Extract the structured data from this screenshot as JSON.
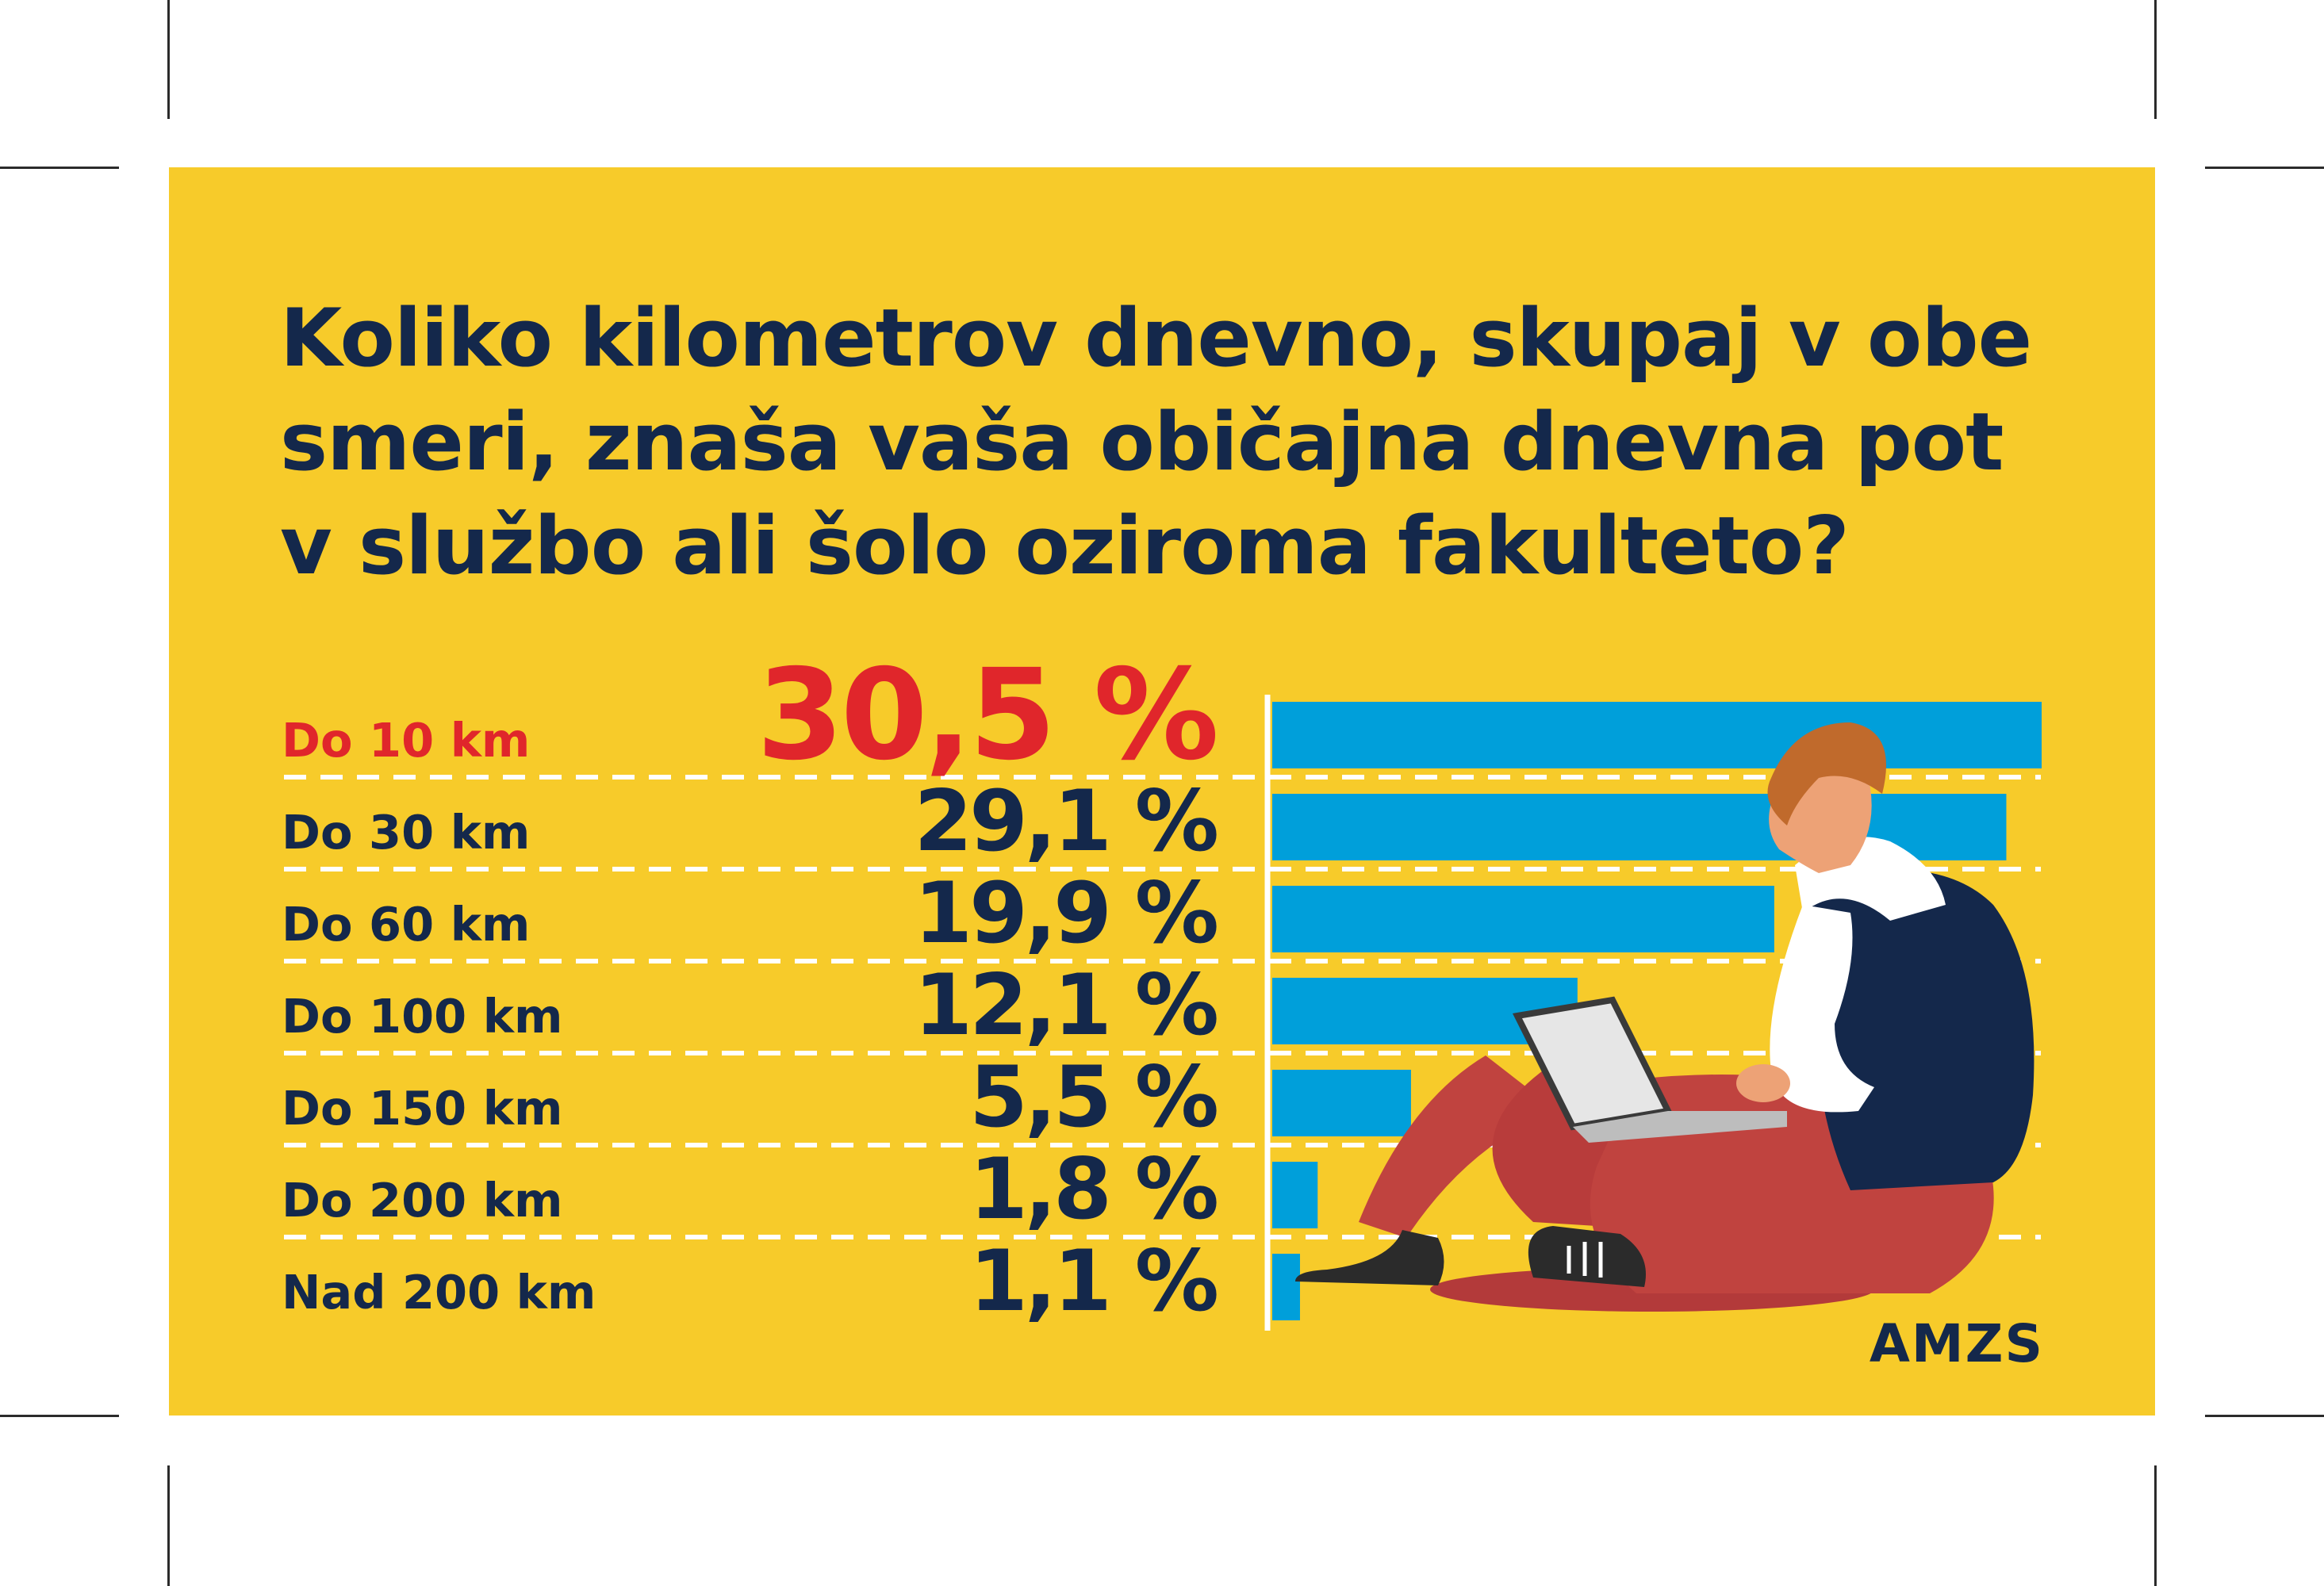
{
  "title": "Koliko kilometrov dnevno, skupaj v obe smeri, znaša vaša običajna dnevna pot v službo ali šolo oziroma fakulteto?",
  "brand": "AMZS",
  "colors": {
    "background": "#f7cb2a",
    "text": "#14284b",
    "highlight": "#e0262b",
    "bar": "#009fda",
    "divider": "#ffffff"
  },
  "illustration": {
    "description_icon": "person-with-laptop-illustration",
    "icon": "person-with-laptop"
  },
  "chart_data": {
    "type": "bar",
    "orientation": "horizontal",
    "categories": [
      "Do 10 km",
      "Do 30 km",
      "Do 60 km",
      "Do 100 km",
      "Do 150 km",
      "Do 200 km",
      "Nad 200 km"
    ],
    "values": [
      30.5,
      29.1,
      19.9,
      12.1,
      5.5,
      1.8,
      1.1
    ],
    "value_labels": [
      "30,5 %",
      "29,1 %",
      "19,9 %",
      "12,1 %",
      "5,5 %",
      "1,8 %",
      "1,1 %"
    ],
    "highlight_index": 0,
    "xlim": [
      0,
      30.5
    ],
    "grid": false,
    "legend": "none"
  }
}
